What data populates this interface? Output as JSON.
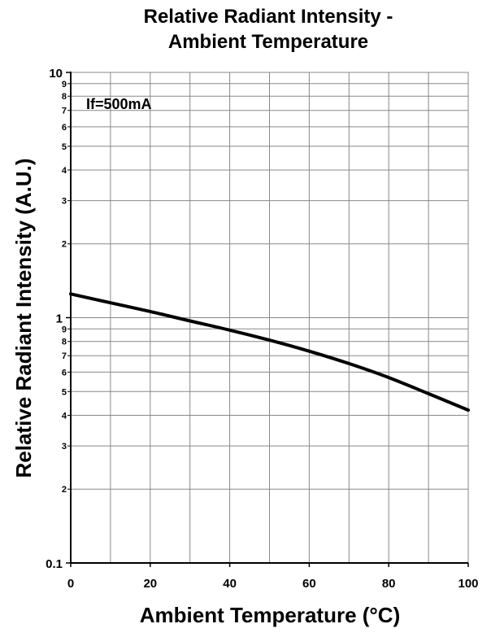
{
  "chart_data": {
    "type": "line",
    "title_lines": [
      "Relative Radiant Intensity -",
      "Ambient Temperature"
    ],
    "xlabel": "Ambient Temperature (°C)",
    "ylabel": "Relative Radiant Intensity (A.U.)",
    "annotation": "If=500mA",
    "xlim": [
      0,
      100
    ],
    "ylim": [
      0.1,
      10
    ],
    "y_scale": "log",
    "grid": true,
    "x_ticks": [
      "0",
      "20",
      "40",
      "60",
      "80",
      "100"
    ],
    "x_tick_values": [
      0,
      20,
      40,
      60,
      80,
      100
    ],
    "x_minor_gridlines": [
      10,
      30,
      50,
      70,
      90
    ],
    "y_major_ticks": [
      {
        "value": 0.1,
        "label": "0.1"
      },
      {
        "value": 1,
        "label": "1"
      },
      {
        "value": 10,
        "label": "10"
      }
    ],
    "y_minor_ticks": [
      {
        "value": 0.2,
        "label": "2"
      },
      {
        "value": 0.3,
        "label": "3"
      },
      {
        "value": 0.4,
        "label": "4"
      },
      {
        "value": 0.5,
        "label": "5"
      },
      {
        "value": 0.6,
        "label": "6"
      },
      {
        "value": 0.7,
        "label": "7"
      },
      {
        "value": 0.8,
        "label": "8"
      },
      {
        "value": 0.9,
        "label": "9"
      },
      {
        "value": 2,
        "label": "2"
      },
      {
        "value": 3,
        "label": "3"
      },
      {
        "value": 4,
        "label": "4"
      },
      {
        "value": 5,
        "label": "5"
      },
      {
        "value": 6,
        "label": "6"
      },
      {
        "value": 7,
        "label": "7"
      },
      {
        "value": 8,
        "label": "8"
      },
      {
        "value": 9,
        "label": "9"
      }
    ],
    "series": [
      {
        "x": [
          0,
          10,
          20,
          30,
          40,
          50,
          60,
          70,
          80,
          90,
          100
        ],
        "y": [
          1.25,
          1.15,
          1.06,
          0.97,
          0.89,
          0.81,
          0.73,
          0.65,
          0.57,
          0.49,
          0.42
        ]
      }
    ],
    "colors": {
      "line": "#000000",
      "grid": "#888888",
      "axis": "#000000"
    }
  }
}
